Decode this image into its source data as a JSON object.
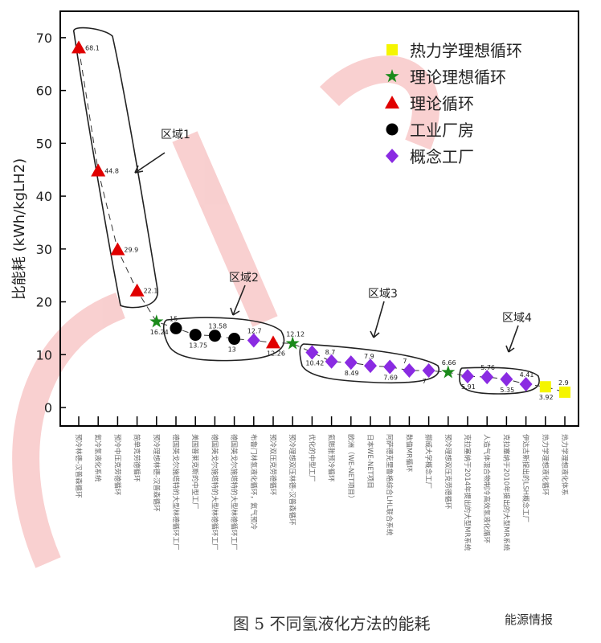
{
  "chart_data": {
    "type": "scatter",
    "ylabel": "比能耗 (kWh/kgLH2)",
    "ylim": [
      -3.5,
      75
    ],
    "yticks": [
      0,
      10,
      20,
      30,
      40,
      50,
      60,
      70
    ],
    "grid": false,
    "legend_position": "top-right",
    "legend": [
      {
        "name": "热力学理想循环",
        "marker": "square",
        "color": "#f5f500"
      },
      {
        "name": "理论理想循环",
        "marker": "star",
        "color": "#1a8a1a"
      },
      {
        "name": "理论循环",
        "marker": "triangle",
        "color": "#e00000"
      },
      {
        "name": "工业厂房",
        "marker": "circle",
        "color": "#000000"
      },
      {
        "name": "概念工厂",
        "marker": "diamond",
        "color": "#8a2be2"
      }
    ],
    "categories": [
      "预冷林德-汉普森循环",
      "氦冷氢液化系统",
      "预冷中压克劳德循环",
      "简单克劳德循环",
      "预冷理想林德-汉普森循环",
      "德国英戈尔施塔特的大型林德循环工厂",
      "美国普莱克斯的中型工厂",
      "德国英戈尔施塔特的大型林德循环工厂",
      "德国英戈尔施塔特的大型林德循环工厂",
      "布鲁门林氢液化循环，氦气预冷",
      "预冷双压克劳德循环",
      "预冷理想双压林德-汉普森循环",
      "优化的中型工厂",
      "氦膨胀预冷循环",
      "欧洲（WE-NET项目）",
      "日本WE-NET项目",
      "阿萨德克里鲁格综合LHL联合系统",
      "数值MR循环",
      "挪威大学概念工厂",
      "预冷理想双压克劳德循环",
      "克拉塞纳于2014年提出的大型MR系统",
      "人造气体混合物制冷高效氢液化循环",
      "克拉塞纳于2010年提出的大型MR系统",
      "伊达古斯提出的LSH概念工厂",
      "热力学理想液化循环",
      "热力学理想液化体系"
    ],
    "points": [
      {
        "value": 68.1,
        "label": "68.1",
        "type": 2
      },
      {
        "value": 44.8,
        "label": "44.8",
        "type": 2
      },
      {
        "value": 29.9,
        "label": "29.9",
        "type": 2
      },
      {
        "value": 22.1,
        "label": "22.1",
        "type": 2
      },
      {
        "value": 16.24,
        "label": "16.24",
        "type": 1
      },
      {
        "value": 15,
        "label": "15",
        "type": 3
      },
      {
        "value": 13.75,
        "label": "13.75",
        "type": 3
      },
      {
        "value": 13.58,
        "label": "13.58",
        "type": 3
      },
      {
        "value": 13,
        "label": "13",
        "type": 3
      },
      {
        "value": 12.7,
        "label": "12.7",
        "type": 4
      },
      {
        "value": 12.26,
        "label": "12.26",
        "type": 2
      },
      {
        "value": 12.12,
        "label": "12.12",
        "type": 1
      },
      {
        "value": 10.42,
        "label": "10.42",
        "type": 4
      },
      {
        "value": 8.7,
        "label": "8.7",
        "type": 4
      },
      {
        "value": 8.49,
        "label": "8.49",
        "type": 4
      },
      {
        "value": 7.9,
        "label": "7.9",
        "type": 4
      },
      {
        "value": 7.69,
        "label": "7.69",
        "type": 4
      },
      {
        "value": 7,
        "label": "7",
        "type": 4
      },
      {
        "value": 7,
        "label": "7",
        "type": 4
      },
      {
        "value": 6.66,
        "label": "6.66",
        "type": 1
      },
      {
        "value": 5.91,
        "label": "5.91",
        "type": 4
      },
      {
        "value": 5.76,
        "label": "5.76",
        "type": 4
      },
      {
        "value": 5.35,
        "label": "5.35",
        "type": 4
      },
      {
        "value": 4.41,
        "label": "4.41",
        "type": 4
      },
      {
        "value": 3.92,
        "label": "3.92",
        "type": 0
      },
      {
        "value": 2.9,
        "label": "2.9",
        "type": 0
      }
    ],
    "regions": [
      "区域1",
      "区域2",
      "区域3",
      "区域4"
    ]
  },
  "caption": "图 5  不同氢液化方法的能耗",
  "logo_text": "能源情报"
}
